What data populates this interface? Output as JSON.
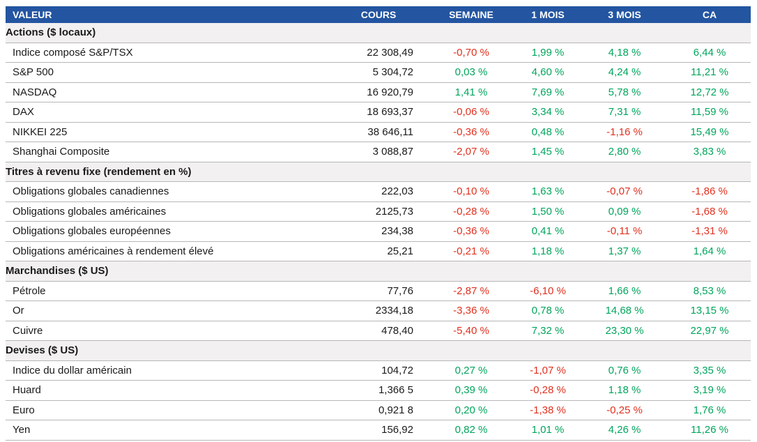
{
  "chart_data": {
    "type": "table",
    "columns": [
      "VALEUR",
      "COURS",
      "SEMAINE",
      "1 MOIS",
      "3 MOIS",
      "CA"
    ],
    "sections": [
      {
        "title": "Actions ($ locaux)",
        "rows": [
          {
            "label": "Indice composé S&P/TSX",
            "cours": "22 308,49",
            "semaine": "-0,70 %",
            "mois1": "1,99 %",
            "mois3": "4,18 %",
            "ca": "6,44 %"
          },
          {
            "label": "S&P 500",
            "cours": "5 304,72",
            "semaine": "0,03 %",
            "mois1": "4,60 %",
            "mois3": "4,24 %",
            "ca": "11,21 %"
          },
          {
            "label": "NASDAQ",
            "cours": "16 920,79",
            "semaine": "1,41 %",
            "mois1": "7,69 %",
            "mois3": "5,78 %",
            "ca": "12,72 %"
          },
          {
            "label": "DAX",
            "cours": "18 693,37",
            "semaine": "-0,06 %",
            "mois1": "3,34 %",
            "mois3": "7,31 %",
            "ca": "11,59 %"
          },
          {
            "label": "NIKKEI 225",
            "cours": "38 646,11",
            "semaine": "-0,36 %",
            "mois1": "0,48 %",
            "mois3": "-1,16 %",
            "ca": "15,49 %"
          },
          {
            "label": "Shanghai Composite",
            "cours": "3 088,87",
            "semaine": "-2,07 %",
            "mois1": "1,45 %",
            "mois3": "2,80 %",
            "ca": "3,83 %"
          }
        ]
      },
      {
        "title": "Titres à revenu fixe (rendement en %)",
        "rows": [
          {
            "label": "Obligations globales canadiennes",
            "cours": "222,03",
            "semaine": "-0,10 %",
            "mois1": "1,63 %",
            "mois3": "-0,07 %",
            "ca": "-1,86 %"
          },
          {
            "label": "Obligations globales américaines",
            "cours": "2125,73",
            "semaine": "-0,28 %",
            "mois1": "1,50 %",
            "mois3": "0,09 %",
            "ca": "-1,68 %"
          },
          {
            "label": "Obligations globales européennes",
            "cours": "234,38",
            "semaine": "-0,36 %",
            "mois1": "0,41 %",
            "mois3": "-0,11 %",
            "ca": "-1,31 %"
          },
          {
            "label": "Obligations américaines à rendement élevé",
            "cours": "25,21",
            "semaine": "-0,21 %",
            "mois1": "1,18 %",
            "mois3": "1,37 %",
            "ca": "1,64 %"
          }
        ]
      },
      {
        "title": "Marchandises ($ US)",
        "rows": [
          {
            "label": "Pétrole",
            "cours": "77,76",
            "semaine": "-2,87 %",
            "mois1": "-6,10 %",
            "mois3": "1,66 %",
            "ca": "8,53 %"
          },
          {
            "label": "Or",
            "cours": "2334,18",
            "semaine": "-3,36 %",
            "mois1": "0,78 %",
            "mois3": "14,68 %",
            "ca": "13,15 %"
          },
          {
            "label": "Cuivre",
            "cours": "478,40",
            "semaine": "-5,40 %",
            "mois1": "7,32 %",
            "mois3": "23,30 %",
            "ca": "22,97 %"
          }
        ]
      },
      {
        "title": "Devises ($ US)",
        "rows": [
          {
            "label": "Indice du dollar américain",
            "cours": "104,72",
            "semaine": "0,27 %",
            "mois1": "-1,07 %",
            "mois3": "0,76 %",
            "ca": "3,35 %"
          },
          {
            "label": "Huard",
            "cours": "1,366 5",
            "semaine": "0,39 %",
            "mois1": "-0,28 %",
            "mois3": "1,18 %",
            "ca": "3,19 %"
          },
          {
            "label": "Euro",
            "cours": "0,921 8",
            "semaine": "0,20 %",
            "mois1": "-1,38 %",
            "mois3": "-0,25 %",
            "ca": "1,76 %"
          },
          {
            "label": "Yen",
            "cours": "156,92",
            "semaine": "0,82 %",
            "mois1": "1,01 %",
            "mois3": "4,26 %",
            "ca": "11,26 %"
          }
        ]
      }
    ],
    "layout": {
      "legend": "none",
      "grid": "horizontal-lines"
    },
    "colors": {
      "header_background": "#2355A1",
      "header_text": "#FFFFFF",
      "section_background": "#F2F0F1",
      "positive": "#00A55C",
      "negative": "#E1301E",
      "row_border": "#B7B7B7",
      "text": "#1A1A1A"
    }
  }
}
